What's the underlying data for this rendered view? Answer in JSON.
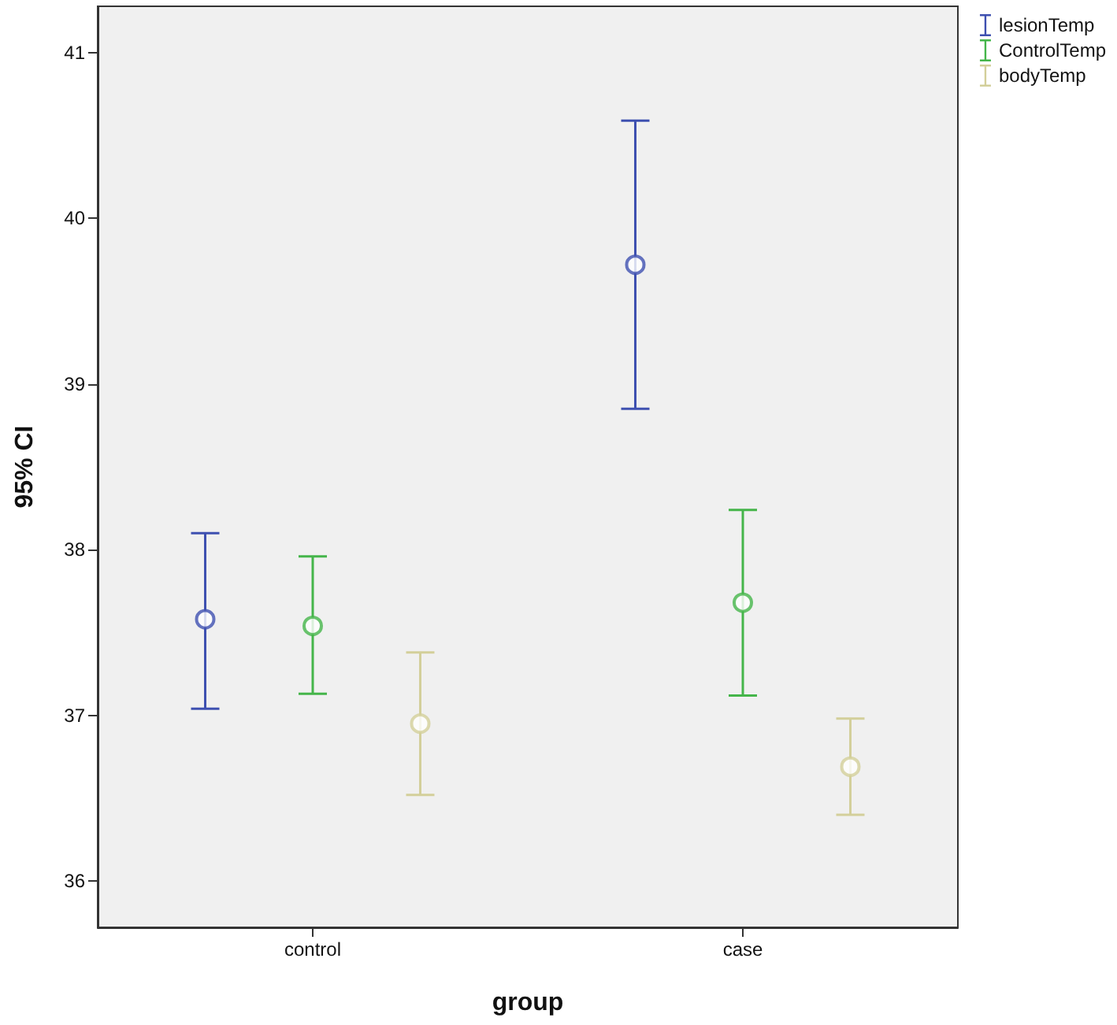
{
  "chart_data": {
    "type": "scatter",
    "xlabel": "group",
    "ylabel": "95% CI",
    "categories": [
      "control",
      "case"
    ],
    "series": [
      {
        "name": "lesionTemp",
        "color": "#3e50b0",
        "values": [
          37.58,
          39.72
        ],
        "errors": [
          [
            37.04,
            38.1
          ],
          [
            38.85,
            40.59
          ]
        ]
      },
      {
        "name": "ControlTemp",
        "color": "#45b54a",
        "values": [
          37.54,
          37.68
        ],
        "errors": [
          [
            37.13,
            37.96
          ],
          [
            37.12,
            38.24
          ]
        ]
      },
      {
        "name": "bodyTemp",
        "color": "#d3cf9a",
        "values": [
          36.95,
          36.69
        ],
        "errors": [
          [
            36.52,
            37.38
          ],
          [
            36.4,
            36.98
          ]
        ]
      }
    ],
    "ylim": [
      35.72,
      41.28
    ],
    "yticks": [
      36,
      37,
      38,
      39,
      40,
      41
    ],
    "grid": false,
    "legend": "top right",
    "marker": "circle"
  }
}
